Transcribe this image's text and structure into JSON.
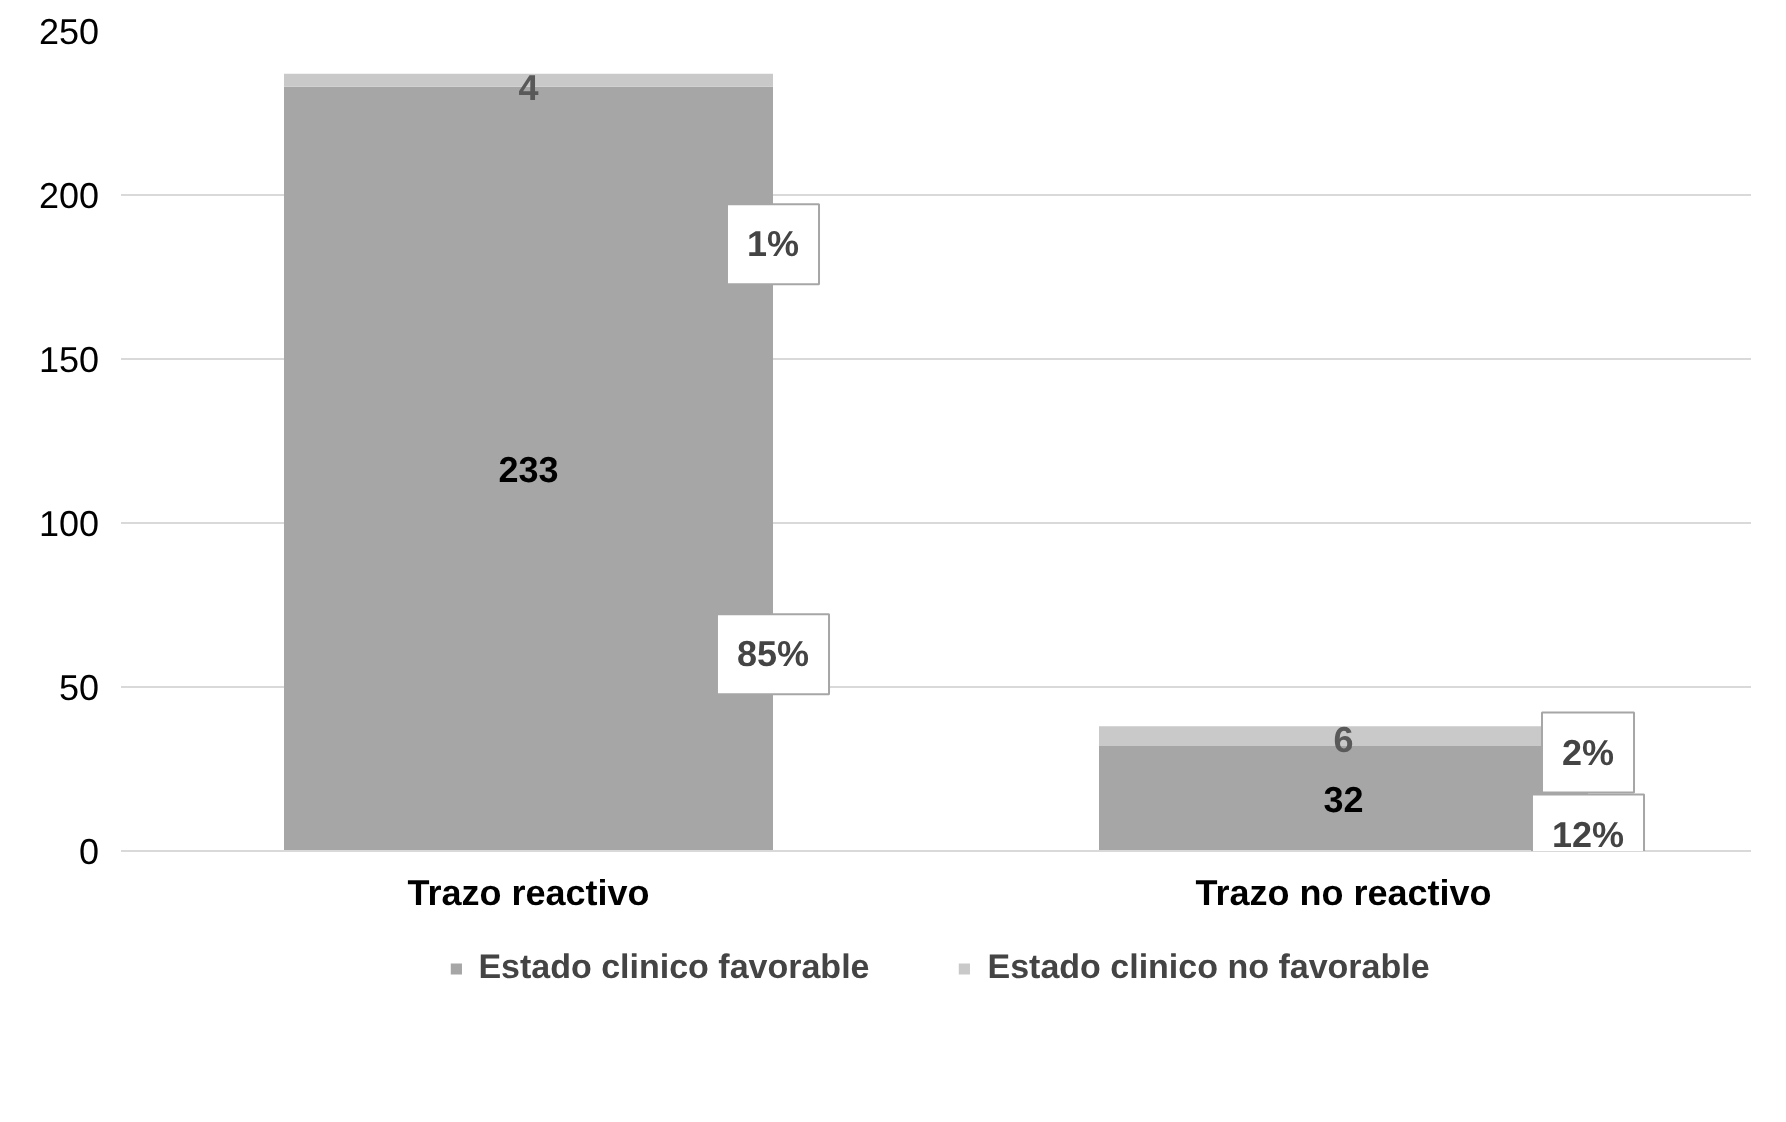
{
  "chart_data": {
    "type": "bar",
    "stacked": true,
    "categories": [
      "Trazo reactivo",
      "Trazo no reactivo"
    ],
    "series": [
      {
        "name": "Estado clinico favorable",
        "color": "#a6a6a6",
        "values": [
          233,
          32
        ]
      },
      {
        "name": "Estado clinico no favorable",
        "color": "#c9c9c9",
        "values": [
          4,
          6
        ]
      }
    ],
    "data_labels": true,
    "ylim": [
      0,
      250
    ],
    "yticks": [
      0,
      50,
      100,
      150,
      200,
      250
    ],
    "grid": "y",
    "legend": "bottom",
    "annotations": [
      "1%",
      "85%",
      "2%",
      "12%"
    ]
  }
}
